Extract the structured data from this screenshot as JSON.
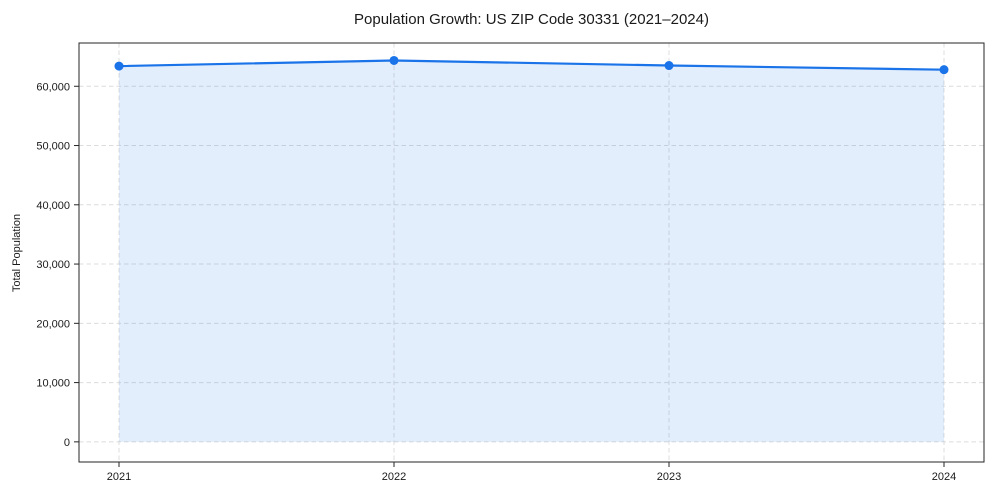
{
  "chart_data": {
    "type": "line",
    "title": "Population Growth: US ZIP Code 30331 (2021–2024)",
    "xlabel": "",
    "ylabel": "Total Population",
    "x": [
      "2021",
      "2022",
      "2023",
      "2024"
    ],
    "series": [
      {
        "name": "Total Population",
        "values": [
          63400,
          64350,
          63500,
          62800
        ],
        "line_color": "#1a73e8",
        "fill_color": "#1a73e8",
        "fill_opacity": 0.12,
        "marker": "circle",
        "fill_to_zero": true
      }
    ],
    "yticks": [
      0,
      10000,
      20000,
      30000,
      40000,
      50000,
      60000
    ],
    "ytick_labels": [
      "0",
      "10,000",
      "20,000",
      "30,000",
      "40,000",
      "50,000",
      "60,000"
    ],
    "ylim": [
      -3400,
      67300
    ],
    "grid": true,
    "grid_style": "dashed",
    "legend": "none",
    "colors": {
      "grid": "#dcdcdc",
      "spine": "#262626",
      "text": "#1a1a1a",
      "background": "#ffffff"
    }
  }
}
